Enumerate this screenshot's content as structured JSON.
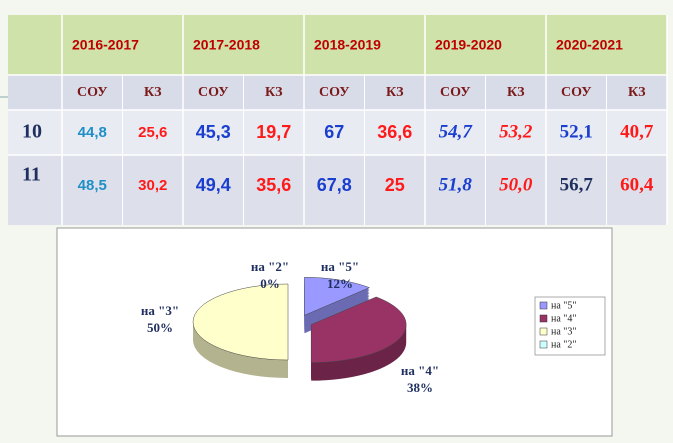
{
  "table": {
    "years": [
      "2016-2017",
      "2017-2018",
      "2018-2019",
      "2019-2020",
      "2020-2021"
    ],
    "subheaders": [
      "СОУ",
      "КЗ",
      "СОУ",
      "КЗ",
      "СОУ",
      "КЗ",
      "СОУ",
      "КЗ",
      "СОУ",
      "КЗ"
    ],
    "rows": [
      [
        "10",
        "44,8",
        "25,6",
        "45,3",
        "19,7",
        "67",
        "36,6",
        "54,7",
        "53,2",
        "52,1",
        "40,7"
      ],
      [
        "11",
        "48,5",
        "30,2",
        "49,4",
        "35,6",
        "67,8",
        "25",
        "51,8",
        "50,0",
        "56,7",
        "60,4"
      ]
    ]
  },
  "chart_data": {
    "type": "pie",
    "categories": [
      "на \"5\"",
      "на \"4\"",
      "на \"3\"",
      "на \"2\""
    ],
    "values": [
      12,
      38,
      50,
      0
    ],
    "value_labels": [
      "12%",
      "38%",
      "50%",
      "0%"
    ],
    "colors": [
      "#9999ff",
      "#993366",
      "#ffffcc",
      "#ccffff"
    ],
    "legend": "right"
  }
}
